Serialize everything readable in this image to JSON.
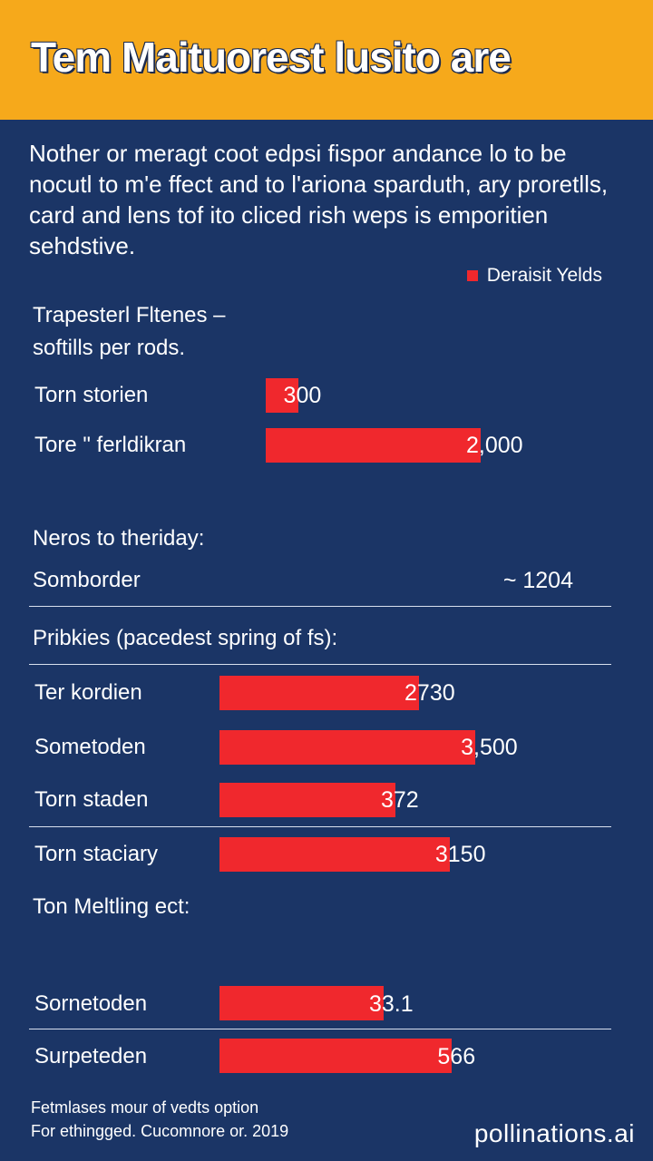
{
  "header": {
    "title": "Tem Maituorest lusito are"
  },
  "intro": {
    "text": "Nother or meragt coot edpsi fispor andance lo to be nocutl to m'e ffect and to l'ariona sparduth, ary proretlls, card and lens tof ito cliced rish weps is emporitien sehdstive."
  },
  "legend": {
    "label": "Deraisit Yelds"
  },
  "colors": {
    "background": "#1b3566",
    "header": "#f6a91b",
    "bar": "#f0282d"
  },
  "chart_data": [
    {
      "type": "bar",
      "title": "Trapesterl Fltenes – softills per rods.",
      "categories": [
        "Torn storien",
        "Tore \" ferldikran"
      ],
      "values": [
        300,
        2000
      ],
      "value_labels": [
        "300",
        "2,000"
      ],
      "legend_position": "top-right"
    },
    {
      "type": "table",
      "title": "Neros to theriday:",
      "rows": [
        {
          "label": "Somborder",
          "value": "~ 1204"
        }
      ]
    },
    {
      "type": "bar",
      "title": "Pribkies (pacedest spring of fs):",
      "categories": [
        "Ter kordien",
        "Sometoden",
        "Torn staden",
        "Torn staciary"
      ],
      "values": [
        2730,
        3500,
        372,
        3150
      ],
      "value_labels": [
        "2730",
        "3,500",
        "372",
        "3150"
      ]
    },
    {
      "type": "bar",
      "title": "Ton Meltling ect:",
      "categories": [
        "Sornetoden",
        "Surpeteden"
      ],
      "values": [
        33.1,
        566
      ],
      "value_labels": [
        "33.1",
        "566"
      ]
    }
  ],
  "footnote": {
    "line1": "Fetmlases mour of vedts option",
    "line2": "For ethingged. Cucomnore or. 2019"
  },
  "watermark": {
    "text": "pollinations.ai"
  }
}
